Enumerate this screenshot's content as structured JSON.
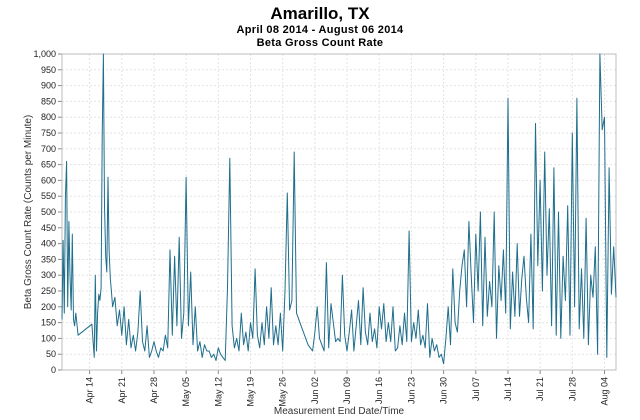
{
  "chart_data": {
    "type": "line",
    "title": "Amarillo, TX",
    "subtitle": "April 08 2014 - August 06 2014",
    "subtitle2": "Beta Gross Count Rate",
    "xlabel": "Measurement End Date/Time",
    "ylabel": "Beta Gross Count Rate (Counts per Minute)",
    "ylim": [
      0,
      1000
    ],
    "yticks": [
      0,
      50,
      100,
      150,
      200,
      250,
      300,
      350,
      400,
      450,
      500,
      550,
      600,
      650,
      700,
      750,
      800,
      850,
      900,
      950,
      1000
    ],
    "ytick_labels": [
      "0",
      "50",
      "100",
      "150",
      "200",
      "250",
      "300",
      "350",
      "400",
      "450",
      "500",
      "550",
      "600",
      "650",
      "700",
      "750",
      "800",
      "850",
      "900",
      "950",
      "1,000"
    ],
    "xlim": [
      "2014-04-08",
      "2014-08-06"
    ],
    "xticks": [
      "2014-04-14",
      "2014-04-21",
      "2014-04-28",
      "2014-05-05",
      "2014-05-12",
      "2014-05-19",
      "2014-05-26",
      "2014-06-02",
      "2014-06-09",
      "2014-06-16",
      "2014-06-23",
      "2014-06-30",
      "2014-07-07",
      "2014-07-14",
      "2014-07-21",
      "2014-07-28",
      "2014-08-04"
    ],
    "xtick_labels": [
      "Apr 14",
      "Apr 21",
      "Apr 28",
      "May 05",
      "May 12",
      "May 19",
      "May 26",
      "Jun 02",
      "Jun 09",
      "Jun 16",
      "Jun 23",
      "Jun 30",
      "Jul 07",
      "Jul 14",
      "Jul 21",
      "Jul 28",
      "Aug 04"
    ],
    "grid": true,
    "color": "#1f6e8c",
    "series": [
      {
        "x": [
          "2014-04-08 00:00",
          "2014-04-08 06:00",
          "2014-04-08 12:00",
          "2014-04-08 18:00",
          "2014-04-09 00:00",
          "2014-04-09 06:00",
          "2014-04-09 12:00",
          "2014-04-09 18:00",
          "2014-04-10 00:00",
          "2014-04-10 06:00",
          "2014-04-10 12:00",
          "2014-04-10 18:00",
          "2014-04-11 00:00",
          "2014-04-11 12:00",
          "2014-04-14 12:00",
          "2014-04-15 00:00",
          "2014-04-15 06:00",
          "2014-04-15 12:00",
          "2014-04-15 18:00",
          "2014-04-16 00:00",
          "2014-04-16 06:00",
          "2014-04-16 12:00",
          "2014-04-16 18:00",
          "2014-04-17 00:00",
          "2014-04-17 06:00",
          "2014-04-17 12:00",
          "2014-04-17 18:00",
          "2014-04-18 00:00",
          "2014-04-18 06:00",
          "2014-04-18 12:00",
          "2014-04-18 18:00",
          "2014-04-19 00:00",
          "2014-04-19 12:00",
          "2014-04-20 00:00",
          "2014-04-20 12:00",
          "2014-04-21 00:00",
          "2014-04-21 12:00",
          "2014-04-22 00:00",
          "2014-04-22 12:00",
          "2014-04-23 00:00",
          "2014-04-23 12:00",
          "2014-04-24 00:00",
          "2014-04-24 12:00",
          "2014-04-25 00:00",
          "2014-04-25 12:00",
          "2014-04-26 00:00",
          "2014-04-26 12:00",
          "2014-04-27 00:00",
          "2014-04-27 12:00",
          "2014-04-28 00:00",
          "2014-04-28 12:00",
          "2014-04-29 00:00",
          "2014-04-29 12:00",
          "2014-04-30 00:00",
          "2014-04-30 12:00",
          "2014-05-01 00:00",
          "2014-05-01 12:00",
          "2014-05-02 00:00",
          "2014-05-02 12:00",
          "2014-05-03 00:00",
          "2014-05-03 12:00",
          "2014-05-04 00:00",
          "2014-05-04 12:00",
          "2014-05-05 00:00",
          "2014-05-05 12:00",
          "2014-05-06 00:00",
          "2014-05-06 12:00",
          "2014-05-07 00:00",
          "2014-05-07 12:00",
          "2014-05-08 00:00",
          "2014-05-08 12:00",
          "2014-05-09 00:00",
          "2014-05-09 12:00",
          "2014-05-10 00:00",
          "2014-05-10 12:00",
          "2014-05-11 00:00",
          "2014-05-11 12:00",
          "2014-05-12 00:00",
          "2014-05-12 12:00",
          "2014-05-13 00:00",
          "2014-05-13 12:00",
          "2014-05-14 00:00",
          "2014-05-14 12:00",
          "2014-05-15 00:00",
          "2014-05-15 12:00",
          "2014-05-16 00:00",
          "2014-05-16 12:00",
          "2014-05-17 00:00",
          "2014-05-17 12:00",
          "2014-05-18 00:00",
          "2014-05-18 12:00",
          "2014-05-19 00:00",
          "2014-05-19 12:00",
          "2014-05-20 00:00",
          "2014-05-20 12:00",
          "2014-05-21 00:00",
          "2014-05-21 12:00",
          "2014-05-22 00:00",
          "2014-05-22 12:00",
          "2014-05-23 00:00",
          "2014-05-23 12:00",
          "2014-05-24 00:00",
          "2014-05-24 12:00",
          "2014-05-25 00:00",
          "2014-05-25 12:00",
          "2014-05-26 00:00",
          "2014-05-26 12:00",
          "2014-05-27 00:00",
          "2014-05-27 12:00",
          "2014-05-28 00:00",
          "2014-05-28 12:00",
          "2014-05-29 00:00",
          "2014-05-29 12:00",
          "2014-05-30 00:00",
          "2014-05-30 12:00",
          "2014-05-31 00:00",
          "2014-05-31 12:00",
          "2014-06-01 00:00",
          "2014-06-01 12:00",
          "2014-06-02 00:00",
          "2014-06-02 12:00",
          "2014-06-03 00:00",
          "2014-06-03 12:00",
          "2014-06-04 00:00",
          "2014-06-04 12:00",
          "2014-06-05 00:00",
          "2014-06-05 12:00",
          "2014-06-06 00:00",
          "2014-06-06 12:00",
          "2014-06-07 00:00",
          "2014-06-07 12:00",
          "2014-06-08 00:00",
          "2014-06-08 12:00",
          "2014-06-09 00:00",
          "2014-06-09 12:00",
          "2014-06-10 00:00",
          "2014-06-10 12:00",
          "2014-06-11 00:00",
          "2014-06-11 12:00",
          "2014-06-12 00:00",
          "2014-06-12 12:00",
          "2014-06-13 00:00",
          "2014-06-13 12:00",
          "2014-06-14 00:00",
          "2014-06-14 12:00",
          "2014-06-15 00:00",
          "2014-06-15 12:00",
          "2014-06-16 00:00",
          "2014-06-16 12:00",
          "2014-06-17 00:00",
          "2014-06-17 12:00",
          "2014-06-18 00:00",
          "2014-06-18 12:00",
          "2014-06-19 00:00",
          "2014-06-19 12:00",
          "2014-06-20 00:00",
          "2014-06-20 12:00",
          "2014-06-21 00:00",
          "2014-06-21 12:00",
          "2014-06-22 00:00",
          "2014-06-22 12:00",
          "2014-06-23 00:00",
          "2014-06-23 12:00",
          "2014-06-24 00:00",
          "2014-06-24 12:00",
          "2014-06-25 00:00",
          "2014-06-25 12:00",
          "2014-06-26 00:00",
          "2014-06-26 12:00",
          "2014-06-27 00:00",
          "2014-06-27 12:00",
          "2014-06-28 00:00",
          "2014-06-28 12:00",
          "2014-06-29 00:00",
          "2014-06-29 12:00",
          "2014-06-30 00:00",
          "2014-06-30 12:00",
          "2014-07-01 00:00",
          "2014-07-01 12:00",
          "2014-07-02 00:00",
          "2014-07-02 12:00",
          "2014-07-03 00:00",
          "2014-07-03 12:00",
          "2014-07-04 00:00",
          "2014-07-04 12:00",
          "2014-07-05 00:00",
          "2014-07-05 12:00",
          "2014-07-06 00:00",
          "2014-07-06 12:00",
          "2014-07-07 00:00",
          "2014-07-07 12:00",
          "2014-07-08 00:00",
          "2014-07-08 12:00",
          "2014-07-09 00:00",
          "2014-07-09 12:00",
          "2014-07-10 00:00",
          "2014-07-10 12:00",
          "2014-07-11 00:00",
          "2014-07-11 12:00",
          "2014-07-12 00:00",
          "2014-07-12 12:00",
          "2014-07-13 00:00",
          "2014-07-13 12:00",
          "2014-07-14 00:00",
          "2014-07-14 12:00",
          "2014-07-15 00:00",
          "2014-07-15 12:00",
          "2014-07-16 00:00",
          "2014-07-16 12:00",
          "2014-07-17 00:00",
          "2014-07-17 12:00",
          "2014-07-18 00:00",
          "2014-07-18 12:00",
          "2014-07-19 00:00",
          "2014-07-19 12:00",
          "2014-07-20 00:00",
          "2014-07-20 12:00",
          "2014-07-21 00:00",
          "2014-07-21 12:00",
          "2014-07-22 00:00",
          "2014-07-22 12:00",
          "2014-07-23 00:00",
          "2014-07-23 12:00",
          "2014-07-24 00:00",
          "2014-07-24 12:00",
          "2014-07-25 00:00",
          "2014-07-25 12:00",
          "2014-07-26 00:00",
          "2014-07-26 12:00",
          "2014-07-27 00:00",
          "2014-07-27 12:00",
          "2014-07-28 00:00",
          "2014-07-28 12:00",
          "2014-07-29 00:00",
          "2014-07-29 12:00",
          "2014-07-30 00:00",
          "2014-07-30 12:00",
          "2014-07-31 00:00",
          "2014-07-31 12:00",
          "2014-08-01 00:00",
          "2014-08-01 12:00",
          "2014-08-02 00:00",
          "2014-08-02 12:00",
          "2014-08-03 00:00",
          "2014-08-03 12:00",
          "2014-08-04 00:00",
          "2014-08-04 12:00",
          "2014-08-05 00:00",
          "2014-08-05 12:00",
          "2014-08-06 00:00",
          "2014-08-06 12:00"
        ],
        "values": [
          160,
          410,
          180,
          545,
          660,
          200,
          470,
          300,
          190,
          430,
          160,
          140,
          180,
          110,
          145,
          40,
          300,
          60,
          180,
          240,
          220,
          260,
          740,
          1000,
          520,
          360,
          310,
          610,
          380,
          290,
          250,
          200,
          230,
          140,
          190,
          110,
          200,
          80,
          160,
          70,
          110,
          60,
          120,
          250,
          90,
          60,
          140,
          40,
          60,
          90,
          60,
          40,
          70,
          60,
          110,
          70,
          380,
          110,
          360,
          140,
          420,
          100,
          180,
          610,
          140,
          310,
          80,
          200,
          60,
          90,
          40,
          80,
          60,
          60,
          40,
          50,
          30,
          70,
          50,
          40,
          30,
          260,
          670,
          140,
          70,
          100,
          60,
          180,
          80,
          120,
          60,
          150,
          100,
          320,
          110,
          70,
          150,
          80,
          200,
          100,
          260,
          80,
          140,
          80,
          180,
          60,
          250,
          560,
          190,
          220,
          690,
          180,
          160,
          140,
          120,
          100,
          80,
          70,
          60,
          120,
          200,
          100,
          80,
          60,
          340,
          70,
          210,
          150,
          90,
          100,
          90,
          300,
          110,
          60,
          120,
          190,
          60,
          140,
          220,
          80,
          260,
          120,
          80,
          180,
          90,
          130,
          70,
          200,
          130,
          210,
          90,
          150,
          90,
          200,
          60,
          70,
          140,
          80,
          180,
          90,
          440,
          90,
          150,
          100,
          190,
          80,
          110,
          70,
          210,
          40,
          100,
          60,
          80,
          40,
          50,
          20,
          100,
          200,
          80,
          320,
          150,
          120,
          250,
          330,
          380,
          200,
          470,
          300,
          150,
          430,
          250,
          500,
          140,
          420,
          170,
          280,
          200,
          500,
          100,
          330,
          220,
          380,
          180,
          860,
          130,
          310,
          170,
          400,
          170,
          290,
          360,
          230,
          150,
          430,
          130,
          780,
          330,
          600,
          250,
          690,
          300,
          510,
          140,
          640,
          110,
          500,
          100,
          360,
          220,
          520,
          110,
          750,
          200,
          860,
          130,
          320,
          100,
          480,
          80,
          300,
          230,
          390,
          50,
          1000,
          760,
          800,
          40,
          640,
          240,
          390,
          230
        ]
      }
    ]
  }
}
